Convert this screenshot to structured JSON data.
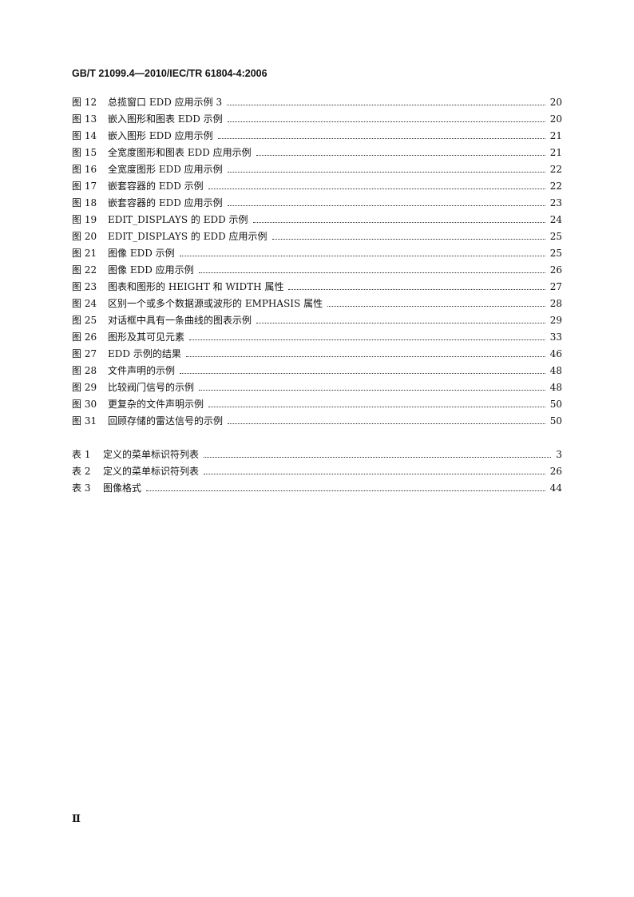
{
  "header": "GB/T 21099.4—2010/IEC/TR 61804-4:2006",
  "figures": [
    {
      "label": "图 12",
      "title": "总揽窗口 EDD 应用示例 3",
      "page": "20"
    },
    {
      "label": "图 13",
      "title": "嵌入图形和图表 EDD 示例",
      "page": "20"
    },
    {
      "label": "图 14",
      "title": "嵌入图形 EDD 应用示例",
      "page": "21"
    },
    {
      "label": "图 15",
      "title": "全宽度图形和图表 EDD 应用示例",
      "page": "21"
    },
    {
      "label": "图 16",
      "title": "全宽度图形 EDD 应用示例",
      "page": "22"
    },
    {
      "label": "图 17",
      "title": "嵌套容器的 EDD 示例",
      "page": "22"
    },
    {
      "label": "图 18",
      "title": "嵌套容器的 EDD 应用示例",
      "page": "23"
    },
    {
      "label": "图 19",
      "title": "EDIT_DISPLAYS 的 EDD 示例",
      "page": "24"
    },
    {
      "label": "图 20",
      "title": "EDIT_DISPLAYS 的 EDD 应用示例",
      "page": "25"
    },
    {
      "label": "图 21",
      "title": "图像 EDD 示例",
      "page": "25"
    },
    {
      "label": "图 22",
      "title": "图像 EDD 应用示例",
      "page": "26"
    },
    {
      "label": "图 23",
      "title": "图表和图形的 HEIGHT 和 WIDTH 属性",
      "page": "27"
    },
    {
      "label": "图 24",
      "title": "区别一个或多个数据源或波形的 EMPHASIS 属性",
      "page": "28"
    },
    {
      "label": "图 25",
      "title": "对话框中具有一条曲线的图表示例",
      "page": "29"
    },
    {
      "label": "图 26",
      "title": "图形及其可见元素",
      "page": "33"
    },
    {
      "label": "图 27",
      "title": "EDD 示例的结果",
      "page": "46"
    },
    {
      "label": "图 28",
      "title": "文件声明的示例",
      "page": "48"
    },
    {
      "label": "图 29",
      "title": "比较阀门信号的示例",
      "page": "48"
    },
    {
      "label": "图 30",
      "title": "更复杂的文件声明示例",
      "page": "50"
    },
    {
      "label": "图 31",
      "title": "回顾存储的雷达信号的示例",
      "page": "50"
    }
  ],
  "tables": [
    {
      "label": "表 1",
      "title": "定义的菜单标识符列表",
      "page": "3"
    },
    {
      "label": "表 2",
      "title": "定义的菜单标识符列表",
      "page": "26"
    },
    {
      "label": "表 3",
      "title": "图像格式",
      "page": "44"
    }
  ],
  "footer": "Ⅱ"
}
